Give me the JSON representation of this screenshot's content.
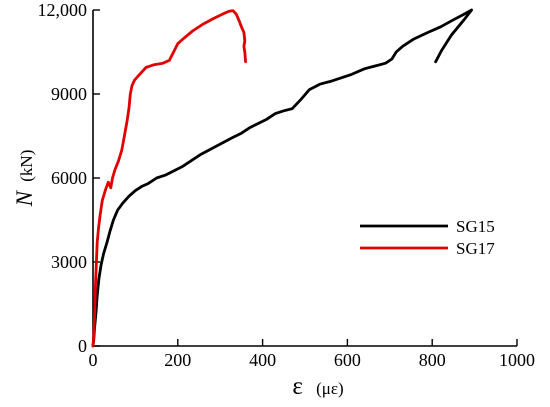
{
  "chart_data": {
    "type": "line",
    "title": "",
    "xlabel": {
      "symbol": "ε",
      "unit": "(με)"
    },
    "ylabel": {
      "symbol": "N",
      "unit": "(kN)"
    },
    "xlim": [
      0,
      1000
    ],
    "ylim": [
      0,
      12000
    ],
    "xticks": [
      0,
      200,
      400,
      600,
      800,
      1000
    ],
    "yticks": [
      0,
      3000,
      6000,
      9000,
      12000
    ],
    "ytick_labels": [
      "0",
      "3000",
      "6000",
      "9000",
      "12,000"
    ],
    "grid": false,
    "legend_position": "center-right",
    "series": [
      {
        "name": "SG15",
        "color": "#000000",
        "points": [
          [
            0,
            0
          ],
          [
            2,
            250
          ],
          [
            4,
            700
          ],
          [
            7,
            1200
          ],
          [
            10,
            1800
          ],
          [
            14,
            2400
          ],
          [
            19,
            2900
          ],
          [
            25,
            3300
          ],
          [
            33,
            3700
          ],
          [
            40,
            4100
          ],
          [
            48,
            4500
          ],
          [
            58,
            4850
          ],
          [
            70,
            5100
          ],
          [
            85,
            5350
          ],
          [
            100,
            5550
          ],
          [
            115,
            5700
          ],
          [
            130,
            5800
          ],
          [
            150,
            6000
          ],
          [
            170,
            6100
          ],
          [
            190,
            6250
          ],
          [
            210,
            6400
          ],
          [
            230,
            6600
          ],
          [
            255,
            6850
          ],
          [
            280,
            7050
          ],
          [
            305,
            7250
          ],
          [
            330,
            7450
          ],
          [
            350,
            7600
          ],
          [
            370,
            7800
          ],
          [
            390,
            7950
          ],
          [
            410,
            8100
          ],
          [
            430,
            8300
          ],
          [
            450,
            8400
          ],
          [
            470,
            8480
          ],
          [
            490,
            8800
          ],
          [
            510,
            9150
          ],
          [
            535,
            9350
          ],
          [
            560,
            9450
          ],
          [
            590,
            9600
          ],
          [
            610,
            9700
          ],
          [
            640,
            9900
          ],
          [
            665,
            10000
          ],
          [
            690,
            10100
          ],
          [
            705,
            10250
          ],
          [
            715,
            10500
          ],
          [
            730,
            10700
          ],
          [
            755,
            10950
          ],
          [
            790,
            11200
          ],
          [
            820,
            11400
          ],
          [
            850,
            11650
          ],
          [
            875,
            11850
          ],
          [
            893,
            12000
          ],
          [
            875,
            11650
          ],
          [
            845,
            11100
          ],
          [
            822,
            10550
          ],
          [
            808,
            10150
          ]
        ]
      },
      {
        "name": "SG17",
        "color": "#e00000",
        "points": [
          [
            0,
            0
          ],
          [
            2,
            400
          ],
          [
            4,
            1200
          ],
          [
            6,
            2200
          ],
          [
            8,
            3000
          ],
          [
            10,
            3700
          ],
          [
            13,
            4200
          ],
          [
            17,
            4700
          ],
          [
            22,
            5200
          ],
          [
            30,
            5600
          ],
          [
            36,
            5850
          ],
          [
            42,
            5650
          ],
          [
            46,
            6000
          ],
          [
            52,
            6300
          ],
          [
            60,
            6600
          ],
          [
            68,
            7000
          ],
          [
            74,
            7500
          ],
          [
            80,
            8000
          ],
          [
            85,
            8500
          ],
          [
            88,
            9000
          ],
          [
            92,
            9300
          ],
          [
            98,
            9500
          ],
          [
            110,
            9700
          ],
          [
            125,
            9950
          ],
          [
            145,
            10050
          ],
          [
            165,
            10100
          ],
          [
            180,
            10200
          ],
          [
            190,
            10500
          ],
          [
            200,
            10800
          ],
          [
            215,
            11000
          ],
          [
            235,
            11250
          ],
          [
            260,
            11500
          ],
          [
            285,
            11700
          ],
          [
            305,
            11850
          ],
          [
            320,
            11950
          ],
          [
            330,
            11980
          ],
          [
            338,
            11850
          ],
          [
            345,
            11600
          ],
          [
            350,
            11400
          ],
          [
            356,
            11200
          ],
          [
            358,
            10900
          ],
          [
            356,
            10700
          ],
          [
            358,
            10500
          ],
          [
            360,
            10150
          ]
        ]
      }
    ]
  }
}
